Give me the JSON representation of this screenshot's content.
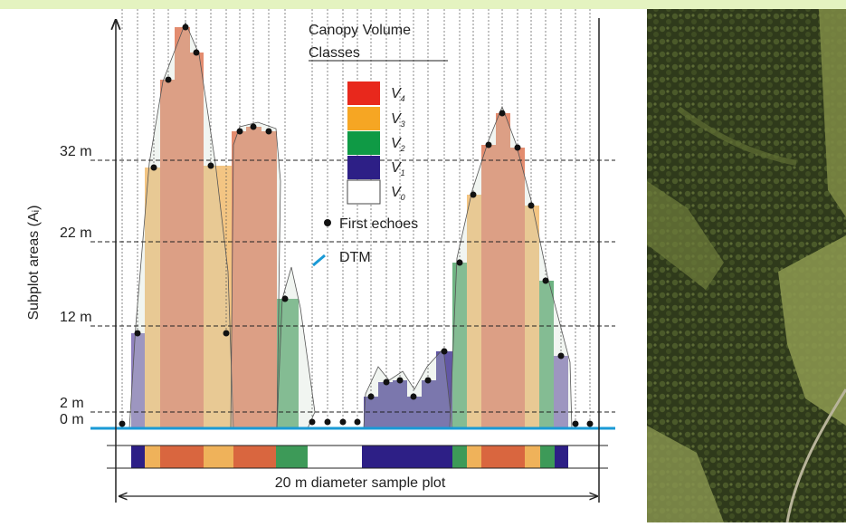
{
  "header": {
    "title": "Canopy Volume",
    "subtitle": "Classes"
  },
  "legend": {
    "classes": [
      {
        "symbol": "V",
        "subscript": "4"
      },
      {
        "symbol": "V",
        "subscript": "3"
      },
      {
        "symbol": "V",
        "subscript": "2"
      },
      {
        "symbol": "V",
        "subscript": "1"
      },
      {
        "symbol": "V",
        "subscript": "0"
      }
    ],
    "echoes": "First echoes",
    "dtm": "DTM"
  },
  "axis": {
    "label": "Subplot areas (Aᵢ)",
    "ticks": [
      "32 m",
      "22 m",
      "12 m",
      "2 m",
      "0 m"
    ]
  },
  "footer": {
    "label": "20 m diameter sample plot"
  }
}
